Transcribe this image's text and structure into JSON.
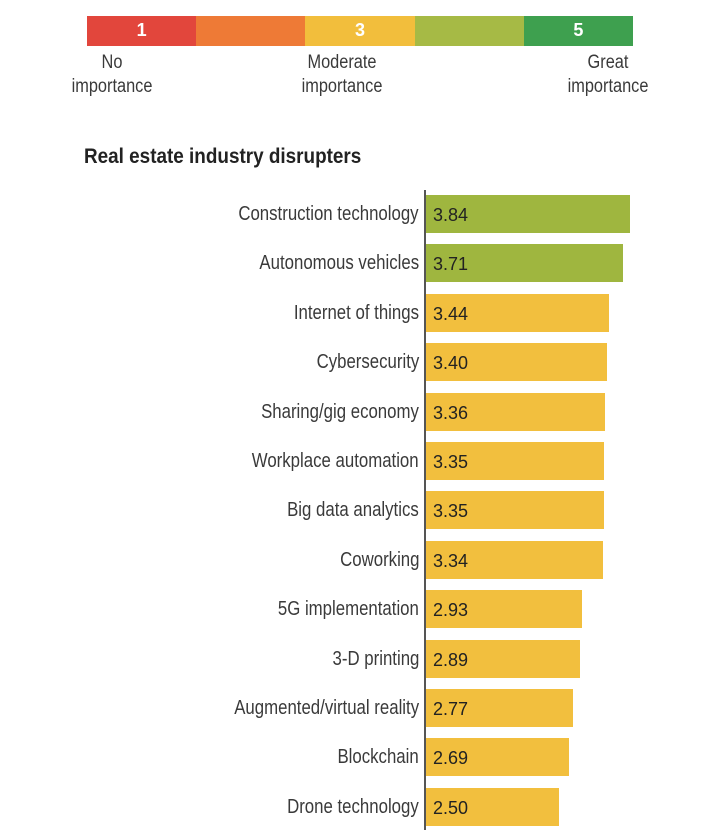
{
  "legend": {
    "segments": [
      {
        "number": "1",
        "color": "#e2463c"
      },
      {
        "number": "",
        "color": "#ee7a36"
      },
      {
        "number": "3",
        "color": "#f2be3c"
      },
      {
        "number": "",
        "color": "#a6ba45"
      },
      {
        "number": "5",
        "color": "#3ea04f"
      }
    ],
    "low": {
      "line1": "No",
      "line2": "importance"
    },
    "mid": {
      "line1": "Moderate",
      "line2": "importance"
    },
    "high": {
      "line1": "Great",
      "line2": "importance"
    }
  },
  "colors": {
    "above_threshold": "#9fb63f",
    "below_threshold": "#f2bf3e"
  },
  "chart_data": {
    "type": "bar",
    "orientation": "horizontal",
    "title": "Real estate industry disrupters",
    "xlim": [
      0,
      3.84
    ],
    "categories": [
      "Construction technology",
      "Autonomous vehicles",
      "Internet of things",
      "Cybersecurity",
      "Sharing/gig economy",
      "Workplace automation",
      "Big data analytics",
      "Coworking",
      "5G implementation",
      "3-D printing",
      "Augmented/virtual reality",
      "Blockchain",
      "Drone technology"
    ],
    "values": [
      3.84,
      3.71,
      3.44,
      3.4,
      3.36,
      3.35,
      3.35,
      3.34,
      2.93,
      2.89,
      2.77,
      2.69,
      2.5
    ],
    "value_labels": [
      "3.84",
      "3.71",
      "3.44",
      "3.40",
      "3.36",
      "3.35",
      "3.35",
      "3.34",
      "2.93",
      "2.89",
      "2.77",
      "2.69",
      "2.50"
    ],
    "bar_colors": [
      "#9fb63f",
      "#9fb63f",
      "#f2bf3e",
      "#f2bf3e",
      "#f2bf3e",
      "#f2bf3e",
      "#f2bf3e",
      "#f2bf3e",
      "#f2bf3e",
      "#f2bf3e",
      "#f2bf3e",
      "#f2bf3e",
      "#f2bf3e"
    ]
  }
}
